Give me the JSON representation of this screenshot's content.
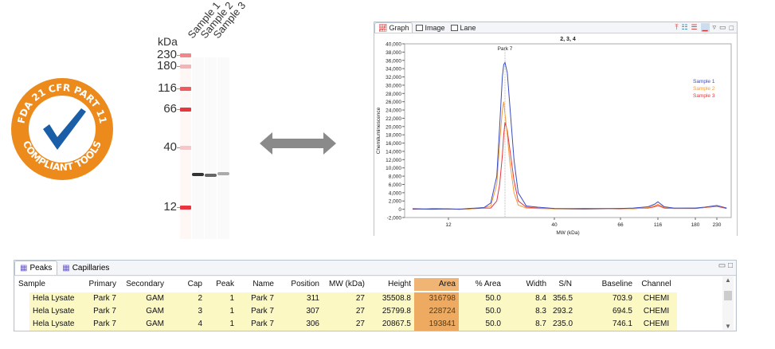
{
  "badge": {
    "top_text": "FDA 21 CFR PART 11",
    "bottom_text": "COMPLIANT TOOLS",
    "color": "#ec8a1c",
    "check_color": "#1a5ea8"
  },
  "gel": {
    "unit": "kDa",
    "markers": [
      "230",
      "180",
      "116",
      "66",
      "40",
      "12"
    ],
    "samples": [
      "Sample 1",
      "Sample 2",
      "Sample 3"
    ]
  },
  "graph": {
    "tabs": [
      "Graph",
      "Image",
      "Lane"
    ],
    "active_tab": "Graph"
  },
  "chart_data": {
    "type": "line",
    "title": "2, 3, 4",
    "xlabel": "MW (kDa)",
    "ylabel": "Chemiluminescence",
    "ylim": [
      -2000,
      40000
    ],
    "yticks": [
      "40,000",
      "38,000",
      "36,000",
      "34,000",
      "32,000",
      "30,000",
      "28,000",
      "26,000",
      "24,000",
      "22,000",
      "20,000",
      "18,000",
      "16,000",
      "14,000",
      "12,000",
      "10,000",
      "8,000",
      "6,000",
      "4,000",
      "2,000",
      "0",
      "-2,000"
    ],
    "xticks": [
      "12",
      "40",
      "66",
      "116",
      "180",
      "230"
    ],
    "annotation": "Park 7",
    "annotation_x": 27,
    "legend": "top-right",
    "x": [
      8,
      10,
      12,
      14,
      16,
      18,
      20,
      22,
      24,
      25,
      26,
      26.5,
      27,
      27.5,
      28,
      29,
      30,
      32,
      35,
      40,
      50,
      66,
      80,
      100,
      110,
      116,
      125,
      140,
      180,
      200,
      230,
      250
    ],
    "series": [
      {
        "name": "Sample 1",
        "color": "#3a4cc0",
        "values": [
          100,
          0,
          100,
          0,
          200,
          300,
          400,
          1500,
          8000,
          20000,
          32000,
          35000,
          35500,
          33000,
          26000,
          12000,
          4000,
          800,
          500,
          200,
          100,
          200,
          300,
          600,
          1200,
          1800,
          600,
          300,
          300,
          500,
          900,
          300
        ]
      },
      {
        "name": "Sample 2",
        "color": "#f59a3a",
        "values": [
          200,
          100,
          0,
          100,
          0,
          300,
          400,
          800,
          6000,
          16000,
          24000,
          26000,
          23000,
          18000,
          12000,
          4000,
          1000,
          300,
          200,
          100,
          0,
          200,
          100,
          400,
          800,
          1200,
          500,
          200,
          300,
          400,
          800,
          300
        ]
      },
      {
        "name": "Sample 3",
        "color": "#e8343c",
        "values": [
          0,
          200,
          100,
          0,
          100,
          200,
          300,
          300,
          2000,
          6000,
          13000,
          18000,
          21000,
          19000,
          15000,
          7000,
          2000,
          500,
          300,
          100,
          200,
          100,
          200,
          300,
          600,
          900,
          300,
          200,
          200,
          400,
          700,
          200
        ]
      }
    ]
  },
  "table": {
    "tabs": [
      "Peaks",
      "Capillaries"
    ],
    "columns": [
      "Sample",
      "Primary",
      "Secondary",
      "Cap",
      "Peak",
      "Name",
      "Position",
      "MW (kDa)",
      "Height",
      "Area",
      "% Area",
      "Width",
      "S/N",
      "Baseline",
      "Channel"
    ],
    "rows": [
      [
        "Hela Lysate",
        "Park 7",
        "GAM",
        "2",
        "1",
        "Park 7",
        "311",
        "27",
        "35508.8",
        "316798",
        "50.0",
        "8.4",
        "356.5",
        "703.9",
        "CHEMI"
      ],
      [
        "Hela Lysate",
        "Park 7",
        "GAM",
        "3",
        "1",
        "Park 7",
        "307",
        "27",
        "25799.8",
        "228724",
        "50.0",
        "8.3",
        "293.2",
        "694.5",
        "CHEMI"
      ],
      [
        "Hela Lysate",
        "Park 7",
        "GAM",
        "4",
        "1",
        "Park 7",
        "306",
        "27",
        "20867.5",
        "193841",
        "50.0",
        "8.7",
        "235.0",
        "746.1",
        "CHEMI"
      ]
    ]
  }
}
